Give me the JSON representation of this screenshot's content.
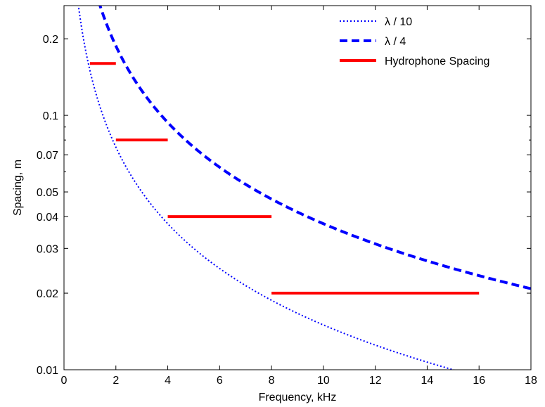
{
  "chart_data": {
    "type": "line",
    "xlabel": "Frequency, kHz",
    "ylabel": "Spacing, m",
    "xlim": [
      0,
      18
    ],
    "ylim": [
      0.01,
      0.27
    ],
    "yscale": "log",
    "x_ticks": [
      0,
      2,
      4,
      6,
      8,
      10,
      12,
      14,
      16,
      18
    ],
    "x_tick_labels": [
      "0",
      "2",
      "4",
      "6",
      "8",
      "10",
      "12",
      "14",
      "16",
      "18"
    ],
    "y_ticks": [
      0.01,
      0.02,
      0.03,
      0.04,
      0.05,
      0.07,
      0.1,
      0.2
    ],
    "y_tick_labels": [
      "0.01",
      "0.02",
      "0.03",
      "0.04",
      "0.05",
      "0.07",
      "0.1",
      "0.2"
    ],
    "grid": false,
    "legend_position": "top-right",
    "sound_speed_m_per_s": 1500,
    "series": [
      {
        "name": "λ / 10",
        "style": "dotted",
        "color": "#0000ff",
        "function": "c/(10*f)",
        "x_range": [
          0.5,
          18
        ]
      },
      {
        "name": "λ / 4",
        "style": "dashed",
        "color": "#0000ff",
        "function": "c/(4*f)",
        "x_range": [
          1.2,
          18
        ]
      },
      {
        "name": "Hydrophone Spacing",
        "style": "solid",
        "color": "#ff0000",
        "segments": [
          {
            "x": [
              1,
              2
            ],
            "y": [
              0.16,
              0.16
            ]
          },
          {
            "x": [
              2,
              4
            ],
            "y": [
              0.08,
              0.08
            ]
          },
          {
            "x": [
              4,
              8
            ],
            "y": [
              0.04,
              0.04
            ]
          },
          {
            "x": [
              8,
              16
            ],
            "y": [
              0.02,
              0.02
            ]
          }
        ]
      }
    ]
  }
}
